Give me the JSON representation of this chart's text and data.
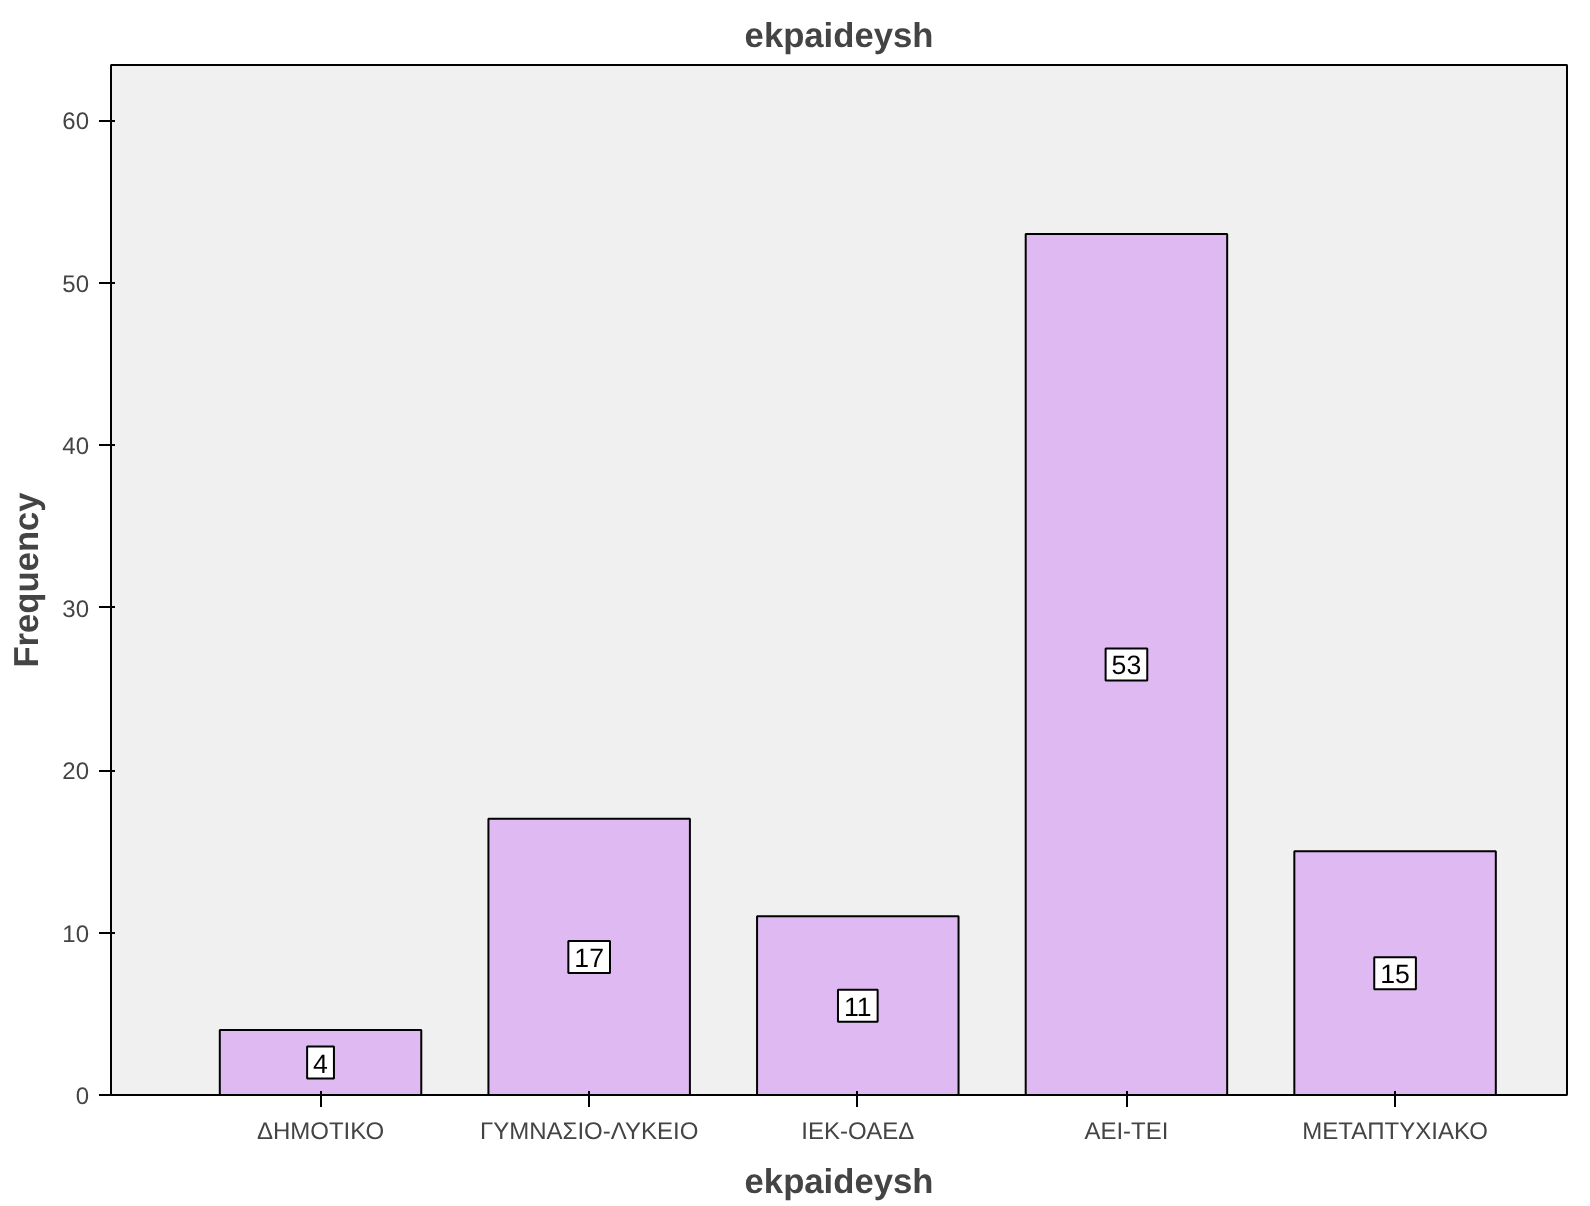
{
  "chart_data": {
    "type": "bar",
    "title": "ekpaideysh",
    "xlabel": "ekpaideysh",
    "ylabel": "Frequency",
    "categories": [
      "ΔΗΜΟΤΙΚΟ",
      "ΓΥΜΝΑΣΙΟ-ΛΥΚΕΙΟ",
      "ΙΕΚ-ΟΑΕΔ",
      "ΑΕΙ-ΤΕΙ",
      "ΜΕΤΑΠΤΥΧΙΑΚΟ"
    ],
    "values": [
      4,
      17,
      11,
      53,
      15
    ],
    "color": "#dfb9f2",
    "ylim": [
      0,
      63.4
    ],
    "yticks": [
      0,
      10,
      20,
      30,
      40,
      50,
      60
    ],
    "grid": false,
    "data_labels": true
  }
}
